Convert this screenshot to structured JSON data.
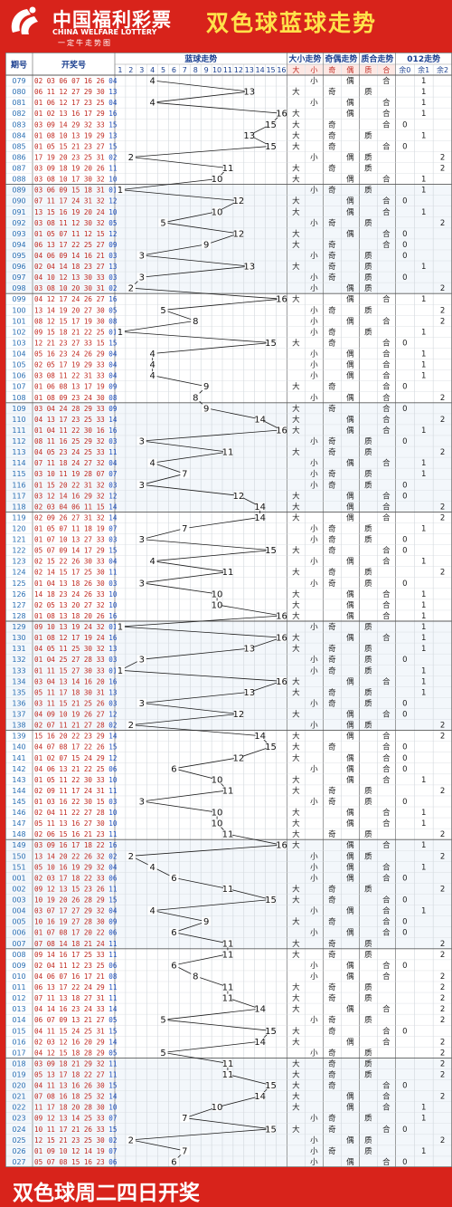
{
  "brand": {
    "name_cn": "中国福利彩票",
    "name_en": "CHINA WELFARE LOTTERY",
    "slogan": "一定牛走势图"
  },
  "page_title": "双色球蓝球走势",
  "footer_text": "双色球周二四日开奖",
  "chart_data": {
    "type": "table",
    "headers": {
      "issue": "期号",
      "numbers": "开奖号",
      "blue_trend": "蓝球走势",
      "size_trend": "大小走势",
      "parity_trend": "奇偶走势",
      "prime_trend": "质合走势",
      "mod3_trend": "012走势"
    },
    "subheaders": {
      "big": "大",
      "small": "小",
      "odd": "奇",
      "even": "偶",
      "prime": "质",
      "composite": "合",
      "mod0": "余0",
      "mod1": "余1",
      "mod2": "余2"
    },
    "blue_columns": [
      "1",
      "2",
      "3",
      "4",
      "5",
      "6",
      "7",
      "8",
      "9",
      "10",
      "11",
      "12",
      "13",
      "14",
      "15",
      "16"
    ],
    "draws": [
      {
        "issue": "079",
        "reds": "02 03 06 07 16 26",
        "blue": 4
      },
      {
        "issue": "080",
        "reds": "06 11 12 27 29 30",
        "blue": 13
      },
      {
        "issue": "081",
        "reds": "01 06 12 17 23 25",
        "blue": 4
      },
      {
        "issue": "082",
        "reds": "01 02 13 16 17 29",
        "blue": 16
      },
      {
        "issue": "083",
        "reds": "03 09 14 29 32 33",
        "blue": 15
      },
      {
        "issue": "084",
        "reds": "01 08 10 13 19 29",
        "blue": 13
      },
      {
        "issue": "085",
        "reds": "01 05 15 21 23 27",
        "blue": 15
      },
      {
        "issue": "086",
        "reds": "17 19 20 23 25 31",
        "blue": 2
      },
      {
        "issue": "087",
        "reds": "03 09 18 19 20 26",
        "blue": 11
      },
      {
        "issue": "088",
        "reds": "03 08 10 17 30 32",
        "blue": 10
      },
      {
        "issue": "089",
        "reds": "03 06 09 15 18 31",
        "blue": 1
      },
      {
        "issue": "090",
        "reds": "07 11 17 24 31 32",
        "blue": 12
      },
      {
        "issue": "091",
        "reds": "13 15 16 19 20 24",
        "blue": 10
      },
      {
        "issue": "092",
        "reds": "03 08 11 12 30 32",
        "blue": 5
      },
      {
        "issue": "093",
        "reds": "01 05 07 11 12 15",
        "blue": 12
      },
      {
        "issue": "094",
        "reds": "06 13 17 22 25 27",
        "blue": 9
      },
      {
        "issue": "095",
        "reds": "04 06 09 14 16 21",
        "blue": 3
      },
      {
        "issue": "096",
        "reds": "02 04 14 18 23 27",
        "blue": 13
      },
      {
        "issue": "097",
        "reds": "04 10 12 13 30 33",
        "blue": 3
      },
      {
        "issue": "098",
        "reds": "03 08 10 20 30 31",
        "blue": 2
      },
      {
        "issue": "099",
        "reds": "04 12 17 24 26 27",
        "blue": 16
      },
      {
        "issue": "100",
        "reds": "13 14 19 20 27 30",
        "blue": 5
      },
      {
        "issue": "101",
        "reds": "08 12 15 17 19 30",
        "blue": 8
      },
      {
        "issue": "102",
        "reds": "09 15 18 21 22 25",
        "blue": 1
      },
      {
        "issue": "103",
        "reds": "12 21 23 27 33 15",
        "blue": 15
      },
      {
        "issue": "104",
        "reds": "05 16 23 24 26 29",
        "blue": 4
      },
      {
        "issue": "105",
        "reds": "02 05 17 19 29 33",
        "blue": 4
      },
      {
        "issue": "106",
        "reds": "03 08 11 22 31 33",
        "blue": 4
      },
      {
        "issue": "107",
        "reds": "01 06 08 13 17 19",
        "blue": 9
      },
      {
        "issue": "108",
        "reds": "01 08 09 23 24 30",
        "blue": 8
      },
      {
        "issue": "109",
        "reds": "03 04 24 28 29 33",
        "blue": 9
      },
      {
        "issue": "110",
        "reds": "04 13 17 23 25 33",
        "blue": 14
      },
      {
        "issue": "111",
        "reds": "01 04 11 22 30 16",
        "blue": 16
      },
      {
        "issue": "112",
        "reds": "08 11 16 25 29 32",
        "blue": 3
      },
      {
        "issue": "113",
        "reds": "04 05 23 24 25 33",
        "blue": 11
      },
      {
        "issue": "114",
        "reds": "07 11 18 24 27 32",
        "blue": 4
      },
      {
        "issue": "115",
        "reds": "03 10 11 19 28 07",
        "blue": 7
      },
      {
        "issue": "116",
        "reds": "01 15 20 22 31 32",
        "blue": 3
      },
      {
        "issue": "117",
        "reds": "03 12 14 16 29 32",
        "blue": 12
      },
      {
        "issue": "118",
        "reds": "02 03 04 06 11 15",
        "blue": 14
      },
      {
        "issue": "119",
        "reds": "02 09 26 27 31 32",
        "blue": 14
      },
      {
        "issue": "120",
        "reds": "01 05 07 11 18 19",
        "blue": 7
      },
      {
        "issue": "121",
        "reds": "01 07 10 13 27 33",
        "blue": 3
      },
      {
        "issue": "122",
        "reds": "05 07 09 14 17 29",
        "blue": 15
      },
      {
        "issue": "123",
        "reds": "02 15 22 26 30 33",
        "blue": 4
      },
      {
        "issue": "124",
        "reds": "02 14 15 17 25 30",
        "blue": 11
      },
      {
        "issue": "125",
        "reds": "01 04 13 18 26 30",
        "blue": 3
      },
      {
        "issue": "126",
        "reds": "14 18 23 24 26 33",
        "blue": 10
      },
      {
        "issue": "127",
        "reds": "02 05 13 20 27 32",
        "blue": 10
      },
      {
        "issue": "128",
        "reds": "01 08 13 18 20 26",
        "blue": 16
      },
      {
        "issue": "129",
        "reds": "09 10 13 19 24 32",
        "blue": 1
      },
      {
        "issue": "130",
        "reds": "01 08 12 17 19 24",
        "blue": 16
      },
      {
        "issue": "131",
        "reds": "04 05 11 25 30 32",
        "blue": 13
      },
      {
        "issue": "132",
        "reds": "01 04 25 27 28 33",
        "blue": 3
      },
      {
        "issue": "133",
        "reds": "01 11 15 27 30 33",
        "blue": 1
      },
      {
        "issue": "134",
        "reds": "03 04 13 14 16 20",
        "blue": 16
      },
      {
        "issue": "135",
        "reds": "05 11 17 18 30 31",
        "blue": 13
      },
      {
        "issue": "136",
        "reds": "03 11 15 21 25 26",
        "blue": 3
      },
      {
        "issue": "137",
        "reds": "04 09 10 19 26 27",
        "blue": 12
      },
      {
        "issue": "138",
        "reds": "02 07 11 21 27 28",
        "blue": 2
      },
      {
        "issue": "139",
        "reds": "15 16 20 22 23 29",
        "blue": 14
      },
      {
        "issue": "140",
        "reds": "04 07 08 17 22 26",
        "blue": 15
      },
      {
        "issue": "141",
        "reds": "01 02 07 15 24 29",
        "blue": 12
      },
      {
        "issue": "142",
        "reds": "04 06 13 21 22 25",
        "blue": 6
      },
      {
        "issue": "143",
        "reds": "01 05 11 22 30 33",
        "blue": 10
      },
      {
        "issue": "144",
        "reds": "02 09 11 17 24 31",
        "blue": 11
      },
      {
        "issue": "145",
        "reds": "01 03 16 22 30 15",
        "blue": 3
      },
      {
        "issue": "146",
        "reds": "02 04 11 22 27 28",
        "blue": 10
      },
      {
        "issue": "147",
        "reds": "05 11 13 16 27 30",
        "blue": 10
      },
      {
        "issue": "148",
        "reds": "02 06 15 16 21 23",
        "blue": 11
      },
      {
        "issue": "149",
        "reds": "03 09 16 17 18 22",
        "blue": 16
      },
      {
        "issue": "150",
        "reds": "13 14 20 22 26 32",
        "blue": 2
      },
      {
        "issue": "151",
        "reds": "05 10 16 19 29 32",
        "blue": 4
      },
      {
        "issue": "001",
        "reds": "02 03 17 18 22 33",
        "blue": 6
      },
      {
        "issue": "002",
        "reds": "09 12 13 15 23 26",
        "blue": 11
      },
      {
        "issue": "003",
        "reds": "10 19 20 26 28 29",
        "blue": 15
      },
      {
        "issue": "004",
        "reds": "03 07 17 27 29 32",
        "blue": 4
      },
      {
        "issue": "005",
        "reds": "10 16 19 27 28 30",
        "blue": 9
      },
      {
        "issue": "006",
        "reds": "01 07 08 17 20 22",
        "blue": 6
      },
      {
        "issue": "007",
        "reds": "07 08 14 18 21 24",
        "blue": 11
      },
      {
        "issue": "008",
        "reds": "09 14 16 17 25 33",
        "blue": 11
      },
      {
        "issue": "009",
        "reds": "02 04 11 12 23 25",
        "blue": 6
      },
      {
        "issue": "010",
        "reds": "04 06 07 16 17 21",
        "blue": 8
      },
      {
        "issue": "011",
        "reds": "06 13 17 22 24 29",
        "blue": 11
      },
      {
        "issue": "012",
        "reds": "07 11 13 18 27 31",
        "blue": 11
      },
      {
        "issue": "013",
        "reds": "04 14 16 23 24 33",
        "blue": 14
      },
      {
        "issue": "014",
        "reds": "06 07 09 13 21 27",
        "blue": 5
      },
      {
        "issue": "015",
        "reds": "04 11 15 24 25 31",
        "blue": 15
      },
      {
        "issue": "016",
        "reds": "02 03 12 16 20 29",
        "blue": 14
      },
      {
        "issue": "017",
        "reds": "04 12 15 18 28 29",
        "blue": 5
      },
      {
        "issue": "018",
        "reds": "03 09 18 21 29 32",
        "blue": 11
      },
      {
        "issue": "019",
        "reds": "05 13 17 18 22 27",
        "blue": 11
      },
      {
        "issue": "020",
        "reds": "04 11 13 16 26 30",
        "blue": 15
      },
      {
        "issue": "021",
        "reds": "07 08 16 18 25 32",
        "blue": 14
      },
      {
        "issue": "022",
        "reds": "11 17 18 20 28 30",
        "blue": 10
      },
      {
        "issue": "023",
        "reds": "09 12 13 14 25 33",
        "blue": 7
      },
      {
        "issue": "024",
        "reds": "10 11 17 21 26 33",
        "blue": 15
      },
      {
        "issue": "025",
        "reds": "12 15 21 23 25 30",
        "blue": 2
      },
      {
        "issue": "026",
        "reds": "01 09 10 12 14 19",
        "blue": 7
      },
      {
        "issue": "027",
        "reds": "05 07 08 15 16 23",
        "blue": 6
      }
    ]
  }
}
